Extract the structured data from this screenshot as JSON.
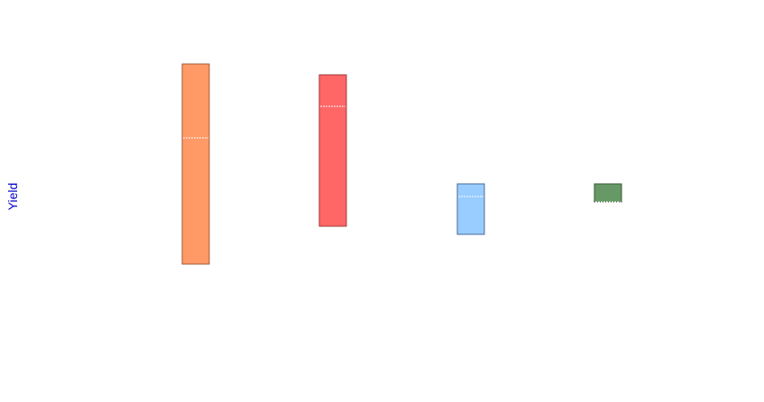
{
  "chart_data": {
    "type": "box",
    "title": "",
    "xlabel": "",
    "ylabel": "Yield",
    "grid": false,
    "legend": "none",
    "ylim": [
      0,
      446
    ],
    "boxes": [
      {
        "q1": 153,
        "median": 293,
        "q3": 375,
        "color": "#ff9966",
        "edge": "#a05a3a"
      },
      {
        "q1": 195,
        "median": 328,
        "q3": 363,
        "color": "#ff6666",
        "edge": "#a03a3a"
      },
      {
        "q1": 186,
        "median": 228,
        "q3": 242,
        "color": "#99ccff",
        "edge": "#4a6a99"
      },
      {
        "q1": 222,
        "median": 222,
        "q3": 242,
        "color": "#669966",
        "edge": "#3a5a3a"
      }
    ]
  }
}
